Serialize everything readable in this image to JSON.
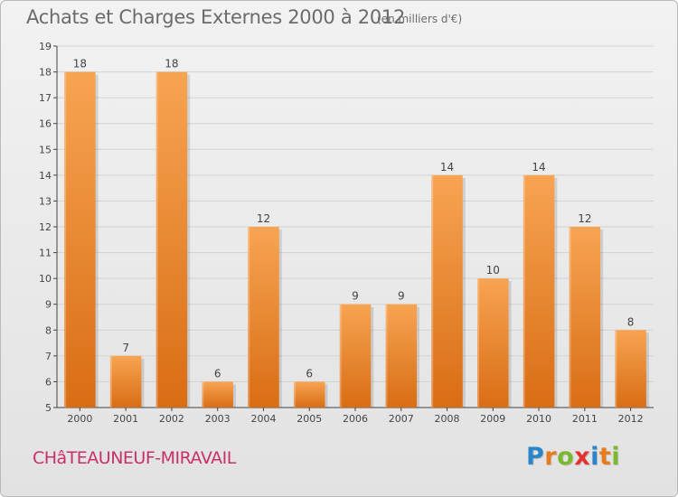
{
  "title": "Achats et Charges Externes 2000 à 2012",
  "subtitle": "(en milliers d'€)",
  "place": "CHâTEAUNEUF-MIRAVAIL",
  "logo": {
    "text": "Proxiti",
    "letters": [
      {
        "ch": "P",
        "color": "#2a86c8"
      },
      {
        "ch": "r",
        "color": "#e87b1f"
      },
      {
        "ch": "o",
        "color": "#7cb82f"
      },
      {
        "ch": "x",
        "color": "#e6322f"
      },
      {
        "ch": "i",
        "color": "#2a86c8"
      },
      {
        "ch": "t",
        "color": "#e87b1f"
      },
      {
        "ch": "i",
        "color": "#7cb82f"
      }
    ]
  },
  "colors": {
    "bar_top": "#f7a452",
    "bar_bottom": "#d96d14",
    "axis": "#444444",
    "text": "#444444",
    "grid": "#d2d2d2"
  },
  "chart_data": {
    "type": "bar",
    "categories": [
      "2000",
      "2001",
      "2002",
      "2003",
      "2004",
      "2005",
      "2006",
      "2007",
      "2008",
      "2009",
      "2010",
      "2011",
      "2012"
    ],
    "values": [
      18,
      7,
      18,
      6,
      12,
      6,
      9,
      9,
      14,
      10,
      14,
      12,
      8
    ],
    "ylim": [
      5,
      19
    ],
    "yticks": [
      5,
      6,
      7,
      8,
      9,
      10,
      11,
      12,
      13,
      14,
      15,
      16,
      17,
      18,
      19
    ],
    "grid": true,
    "data_labels": true
  }
}
